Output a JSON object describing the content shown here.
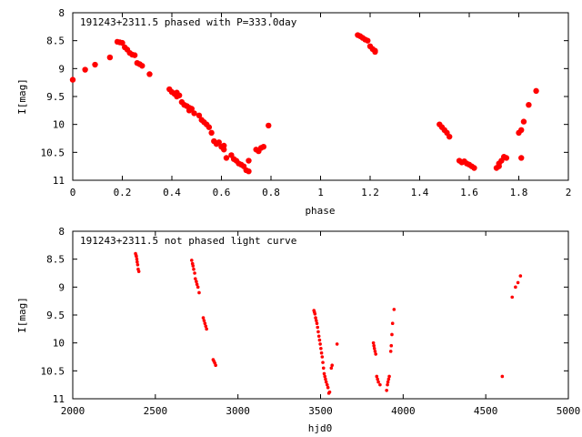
{
  "chart_data": [
    {
      "type": "scatter",
      "title": "191243+2311.5 phased with P=333.0day",
      "xlabel": "phase",
      "ylabel": "I[mag]",
      "xlim": [
        0,
        2
      ],
      "ylim": [
        8,
        11
      ],
      "y_inverted": true,
      "xticks": [
        "0",
        "0.2",
        "0.4",
        "0.6",
        "0.8",
        "1",
        "1.2",
        "1.4",
        "1.6",
        "1.8",
        "2"
      ],
      "yticks": [
        "8",
        "8.5",
        "9",
        "9.5",
        "10",
        "10.5",
        "11"
      ],
      "marker": "filled-circle-large",
      "color": "#ff0000",
      "grid": false,
      "points": [
        [
          0.0,
          9.2
        ],
        [
          0.05,
          9.02
        ],
        [
          0.09,
          8.93
        ],
        [
          0.15,
          8.8
        ],
        [
          0.18,
          8.52
        ],
        [
          0.19,
          8.53
        ],
        [
          0.2,
          8.54
        ],
        [
          0.21,
          8.62
        ],
        [
          0.22,
          8.66
        ],
        [
          0.23,
          8.72
        ],
        [
          0.24,
          8.75
        ],
        [
          0.25,
          8.76
        ],
        [
          0.26,
          8.9
        ],
        [
          0.27,
          8.92
        ],
        [
          0.28,
          8.95
        ],
        [
          0.31,
          9.1
        ],
        [
          0.39,
          9.37
        ],
        [
          0.4,
          9.42
        ],
        [
          0.41,
          9.45
        ],
        [
          0.42,
          9.43
        ],
        [
          0.42,
          9.5
        ],
        [
          0.43,
          9.48
        ],
        [
          0.44,
          9.6
        ],
        [
          0.45,
          9.65
        ],
        [
          0.46,
          9.67
        ],
        [
          0.47,
          9.7
        ],
        [
          0.47,
          9.75
        ],
        [
          0.48,
          9.72
        ],
        [
          0.49,
          9.8
        ],
        [
          0.51,
          9.84
        ],
        [
          0.52,
          9.92
        ],
        [
          0.53,
          9.96
        ],
        [
          0.54,
          10.0
        ],
        [
          0.55,
          10.05
        ],
        [
          0.56,
          10.15
        ],
        [
          0.57,
          10.3
        ],
        [
          0.58,
          10.35
        ],
        [
          0.59,
          10.32
        ],
        [
          0.6,
          10.4
        ],
        [
          0.61,
          10.38
        ],
        [
          0.61,
          10.45
        ],
        [
          0.62,
          10.6
        ],
        [
          0.64,
          10.55
        ],
        [
          0.65,
          10.62
        ],
        [
          0.66,
          10.65
        ],
        [
          0.67,
          10.7
        ],
        [
          0.68,
          10.72
        ],
        [
          0.69,
          10.75
        ],
        [
          0.7,
          10.82
        ],
        [
          0.71,
          10.84
        ],
        [
          0.71,
          10.65
        ],
        [
          0.74,
          10.45
        ],
        [
          0.75,
          10.48
        ],
        [
          0.76,
          10.42
        ],
        [
          0.77,
          10.4
        ],
        [
          0.79,
          10.02
        ],
        [
          1.15,
          8.4
        ],
        [
          1.16,
          8.42
        ],
        [
          1.17,
          8.45
        ],
        [
          1.18,
          8.48
        ],
        [
          1.19,
          8.5
        ],
        [
          1.2,
          8.6
        ],
        [
          1.21,
          8.65
        ],
        [
          1.22,
          8.68
        ],
        [
          1.22,
          8.7
        ],
        [
          1.48,
          10.0
        ],
        [
          1.49,
          10.05
        ],
        [
          1.5,
          10.1
        ],
        [
          1.51,
          10.15
        ],
        [
          1.52,
          10.22
        ],
        [
          1.56,
          10.65
        ],
        [
          1.57,
          10.68
        ],
        [
          1.58,
          10.66
        ],
        [
          1.59,
          10.7
        ],
        [
          1.6,
          10.72
        ],
        [
          1.61,
          10.75
        ],
        [
          1.62,
          10.78
        ],
        [
          1.71,
          10.78
        ],
        [
          1.72,
          10.75
        ],
        [
          1.72,
          10.7
        ],
        [
          1.73,
          10.65
        ],
        [
          1.74,
          10.58
        ],
        [
          1.75,
          10.6
        ],
        [
          1.8,
          10.15
        ],
        [
          1.81,
          10.1
        ],
        [
          1.81,
          10.6
        ],
        [
          1.82,
          9.95
        ],
        [
          1.84,
          9.65
        ],
        [
          1.87,
          9.4
        ]
      ]
    },
    {
      "type": "scatter",
      "title": "191243+2311.5 not phased light curve",
      "xlabel": "hjd0",
      "ylabel": "I[mag]",
      "xlim": [
        2000,
        5000
      ],
      "ylim": [
        8,
        11
      ],
      "y_inverted": true,
      "xticks": [
        "2000",
        "2500",
        "3000",
        "3500",
        "4000",
        "4500",
        "5000"
      ],
      "yticks": [
        "8",
        "8.5",
        "9",
        "9.5",
        "10",
        "10.5",
        "11"
      ],
      "marker": "filled-circle-small",
      "color": "#ff0000",
      "grid": false,
      "points": [
        [
          2380,
          8.4
        ],
        [
          2383,
          8.43
        ],
        [
          2385,
          8.45
        ],
        [
          2388,
          8.5
        ],
        [
          2390,
          8.55
        ],
        [
          2393,
          8.6
        ],
        [
          2396,
          8.68
        ],
        [
          2400,
          8.72
        ],
        [
          2720,
          8.52
        ],
        [
          2725,
          8.58
        ],
        [
          2728,
          8.62
        ],
        [
          2732,
          8.68
        ],
        [
          2738,
          8.75
        ],
        [
          2742,
          8.85
        ],
        [
          2748,
          8.9
        ],
        [
          2752,
          8.95
        ],
        [
          2758,
          9.0
        ],
        [
          2765,
          9.1
        ],
        [
          2790,
          9.55
        ],
        [
          2795,
          9.6
        ],
        [
          2800,
          9.65
        ],
        [
          2805,
          9.7
        ],
        [
          2810,
          9.75
        ],
        [
          2850,
          10.3
        ],
        [
          2855,
          10.33
        ],
        [
          2860,
          10.36
        ],
        [
          2865,
          10.4
        ],
        [
          3460,
          9.42
        ],
        [
          3463,
          9.45
        ],
        [
          3466,
          9.48
        ],
        [
          3470,
          9.55
        ],
        [
          3474,
          9.6
        ],
        [
          3478,
          9.65
        ],
        [
          3482,
          9.72
        ],
        [
          3486,
          9.8
        ],
        [
          3490,
          9.88
        ],
        [
          3494,
          9.95
        ],
        [
          3498,
          10.02
        ],
        [
          3502,
          10.1
        ],
        [
          3506,
          10.18
        ],
        [
          3510,
          10.25
        ],
        [
          3514,
          10.35
        ],
        [
          3518,
          10.45
        ],
        [
          3522,
          10.55
        ],
        [
          3526,
          10.6
        ],
        [
          3530,
          10.65
        ],
        [
          3534,
          10.7
        ],
        [
          3540,
          10.75
        ],
        [
          3545,
          10.8
        ],
        [
          3550,
          10.9
        ],
        [
          3555,
          10.88
        ],
        [
          3565,
          10.45
        ],
        [
          3570,
          10.4
        ],
        [
          3600,
          10.02
        ],
        [
          3820,
          10.0
        ],
        [
          3823,
          10.05
        ],
        [
          3826,
          10.1
        ],
        [
          3830,
          10.15
        ],
        [
          3834,
          10.2
        ],
        [
          3840,
          10.6
        ],
        [
          3845,
          10.65
        ],
        [
          3850,
          10.7
        ],
        [
          3860,
          10.75
        ],
        [
          3900,
          10.85
        ],
        [
          3905,
          10.75
        ],
        [
          3908,
          10.7
        ],
        [
          3912,
          10.65
        ],
        [
          3916,
          10.6
        ],
        [
          3925,
          10.15
        ],
        [
          3928,
          10.05
        ],
        [
          3932,
          9.85
        ],
        [
          3936,
          9.65
        ],
        [
          3945,
          9.4
        ],
        [
          4600,
          10.6
        ],
        [
          4660,
          9.18
        ],
        [
          4680,
          9.0
        ],
        [
          4695,
          8.92
        ],
        [
          4710,
          8.8
        ]
      ]
    }
  ]
}
